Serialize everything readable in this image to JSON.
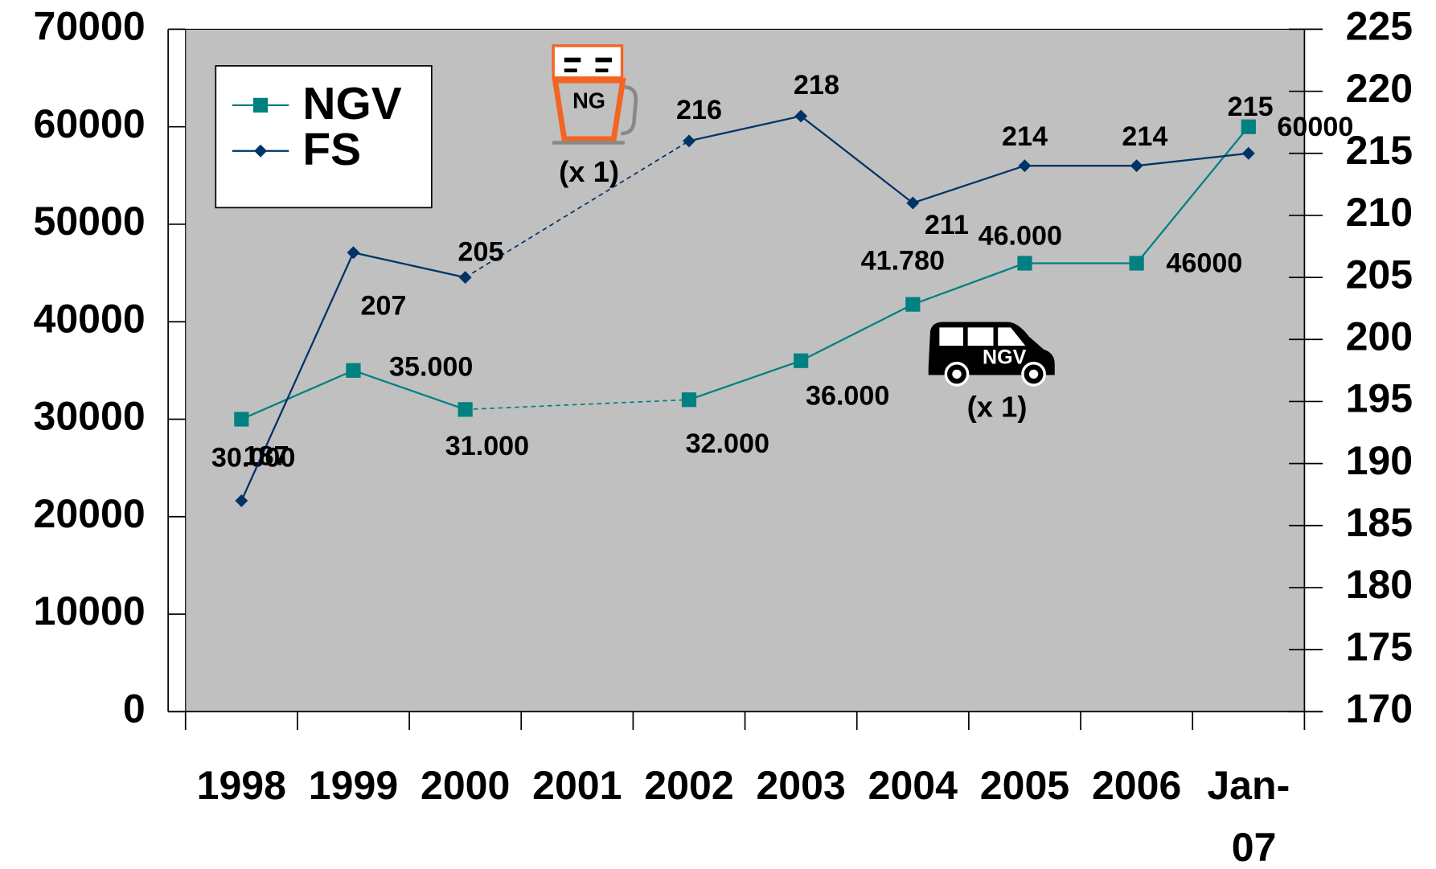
{
  "chart_data": {
    "type": "line",
    "categories": [
      "1998",
      "1999",
      "2000",
      "2001",
      "2002",
      "2003",
      "2004",
      "2005",
      "2006",
      "Jan-07"
    ],
    "series": [
      {
        "name": "NGV",
        "color": "#008080",
        "marker": "square",
        "values": [
          30000,
          35000,
          31000,
          null,
          32000,
          36000,
          41780,
          46000,
          46000,
          60000
        ],
        "value_labels": [
          "30.000",
          "35.000",
          "31.000",
          null,
          "32.000",
          "36.000",
          "41.780",
          "46.000",
          "46000",
          "60000"
        ]
      },
      {
        "name": "FS",
        "color": "#003366",
        "marker": "diamond",
        "axis": "y2",
        "values": [
          187,
          207,
          205,
          null,
          216,
          218,
          211,
          214,
          214,
          215
        ]
      }
    ],
    "ylim": [
      0,
      70000
    ],
    "yticks": [
      0,
      10000,
      20000,
      30000,
      40000,
      50000,
      60000,
      70000
    ],
    "y2lim": [
      170,
      225
    ],
    "y2ticks": [
      170,
      175,
      180,
      185,
      190,
      195,
      200,
      205,
      210,
      215,
      220,
      225
    ],
    "legend": "upper left",
    "annotations": [
      "NG",
      "(x 1)",
      "NGV",
      "(x 1)"
    ]
  }
}
